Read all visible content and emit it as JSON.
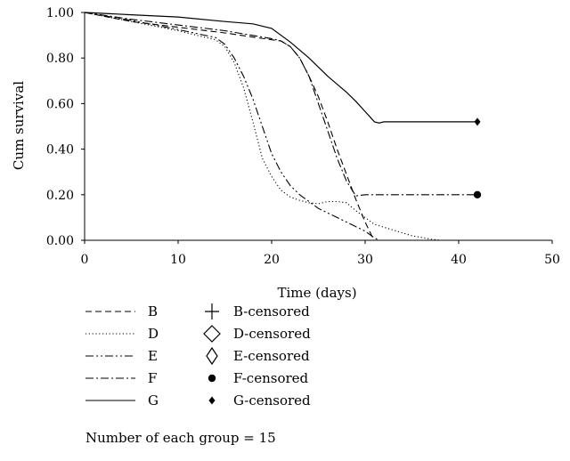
{
  "chart_data": {
    "type": "line",
    "title": "",
    "xlabel": "Time (days)",
    "ylabel": "Cum survival",
    "xlim": [
      0,
      50
    ],
    "ylim": [
      0,
      1
    ],
    "x_ticks": [
      0,
      10,
      20,
      30,
      40,
      50
    ],
    "x_tick_labels": [
      "0",
      "10",
      "20",
      "30",
      "40",
      "50"
    ],
    "y_ticks": [
      0,
      0.2,
      0.4,
      0.6,
      0.8,
      1.0
    ],
    "y_tick_labels": [
      "0.00",
      "0.20",
      "0.40",
      "0.60",
      "0.80",
      "1.00"
    ],
    "grid": false,
    "legend_position": "bottom",
    "series": [
      {
        "name": "B",
        "dash": "dash",
        "x": [
          0,
          5,
          10,
          15,
          20,
          21,
          22,
          23,
          24,
          25,
          26,
          27,
          28,
          29,
          30,
          30.7,
          31
        ],
        "y": [
          1.0,
          0.96,
          0.935,
          0.91,
          0.88,
          0.875,
          0.85,
          0.8,
          0.72,
          0.63,
          0.52,
          0.4,
          0.29,
          0.18,
          0.08,
          0.02,
          0.0
        ]
      },
      {
        "name": "D",
        "dash": "dot",
        "x": [
          0,
          5,
          10,
          14,
          15,
          16,
          17,
          18,
          19,
          20,
          21,
          22,
          23,
          24,
          25,
          26,
          27,
          28,
          29,
          30,
          31,
          33,
          35,
          37,
          38
        ],
        "y": [
          1.0,
          0.96,
          0.92,
          0.88,
          0.85,
          0.78,
          0.67,
          0.52,
          0.36,
          0.28,
          0.22,
          0.19,
          0.175,
          0.165,
          0.16,
          0.17,
          0.17,
          0.165,
          0.13,
          0.1,
          0.07,
          0.045,
          0.02,
          0.005,
          0.0
        ]
      },
      {
        "name": "E",
        "dash": "dashdotdot",
        "x": [
          0,
          5,
          10,
          14,
          15,
          16,
          17,
          18,
          19,
          20,
          21,
          22,
          23,
          24,
          25,
          26,
          27,
          28,
          29,
          30,
          31,
          31.5
        ],
        "y": [
          1.0,
          0.965,
          0.925,
          0.89,
          0.86,
          0.8,
          0.72,
          0.62,
          0.5,
          0.38,
          0.3,
          0.24,
          0.2,
          0.17,
          0.14,
          0.12,
          0.1,
          0.08,
          0.06,
          0.04,
          0.01,
          0.0
        ]
      },
      {
        "name": "F",
        "dash": "dashdot",
        "x": [
          0,
          5,
          10,
          15,
          20,
          21,
          22,
          23,
          24,
          25,
          26,
          27,
          28,
          29,
          30,
          42
        ],
        "y": [
          1.0,
          0.97,
          0.945,
          0.92,
          0.885,
          0.875,
          0.85,
          0.8,
          0.72,
          0.6,
          0.48,
          0.36,
          0.26,
          0.195,
          0.2,
          0.2
        ]
      },
      {
        "name": "G",
        "dash": "solid",
        "x": [
          0,
          5,
          10,
          15,
          18,
          20,
          22,
          24,
          26,
          28,
          29,
          30,
          31,
          31.5,
          32,
          42
        ],
        "y": [
          1.0,
          0.99,
          0.98,
          0.96,
          0.95,
          0.93,
          0.87,
          0.8,
          0.72,
          0.65,
          0.61,
          0.565,
          0.52,
          0.515,
          0.52,
          0.52
        ]
      }
    ],
    "censored": [
      {
        "name": "F-censored",
        "marker": "circle",
        "x": 42,
        "y": 0.2
      },
      {
        "name": "G-censored",
        "marker": "small-diamond",
        "x": 42,
        "y": 0.52
      }
    ],
    "legend_lines": [
      {
        "label": "B",
        "dash": "dash"
      },
      {
        "label": "D",
        "dash": "dot"
      },
      {
        "label": "E",
        "dash": "dashdotdot"
      },
      {
        "label": "F",
        "dash": "dashdot"
      },
      {
        "label": "G",
        "dash": "solid"
      }
    ],
    "legend_markers": [
      {
        "label": "B-censored",
        "marker": "plus"
      },
      {
        "label": "D-censored",
        "marker": "diamond"
      },
      {
        "label": "E-censored",
        "marker": "tall-diamond"
      },
      {
        "label": "F-censored",
        "marker": "circle"
      },
      {
        "label": "G-censored",
        "marker": "small-diamond"
      }
    ],
    "note": "Number of each group = 15"
  }
}
